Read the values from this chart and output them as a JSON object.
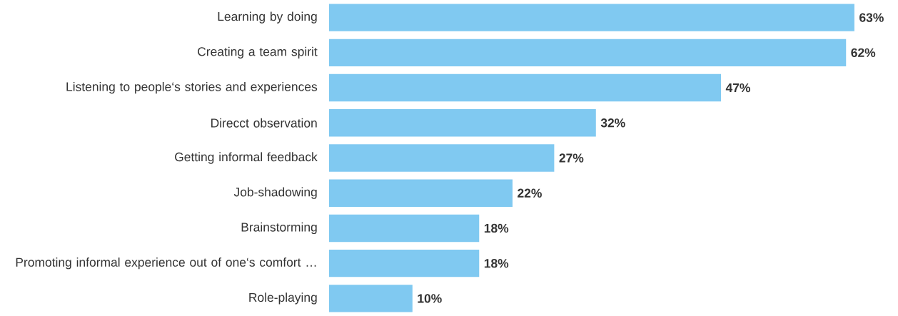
{
  "chart_data": {
    "type": "bar",
    "orientation": "horizontal",
    "categories": [
      "Learning by doing",
      "Creating a team spirit",
      "Listening to people‘s stories and experiences",
      "Direcct observation",
      "Getting informal feedback",
      "Job-shadowing",
      "Brainstorming",
      "Promoting informal experience out of one‘s comfort …",
      "Role-playing"
    ],
    "values": [
      63,
      62,
      47,
      32,
      27,
      22,
      18,
      18,
      10
    ],
    "value_labels": [
      "63%",
      "62%",
      "47%",
      "32%",
      "27%",
      "22%",
      "18%",
      "18%",
      "10%"
    ],
    "color": "#80c9f1"
  }
}
